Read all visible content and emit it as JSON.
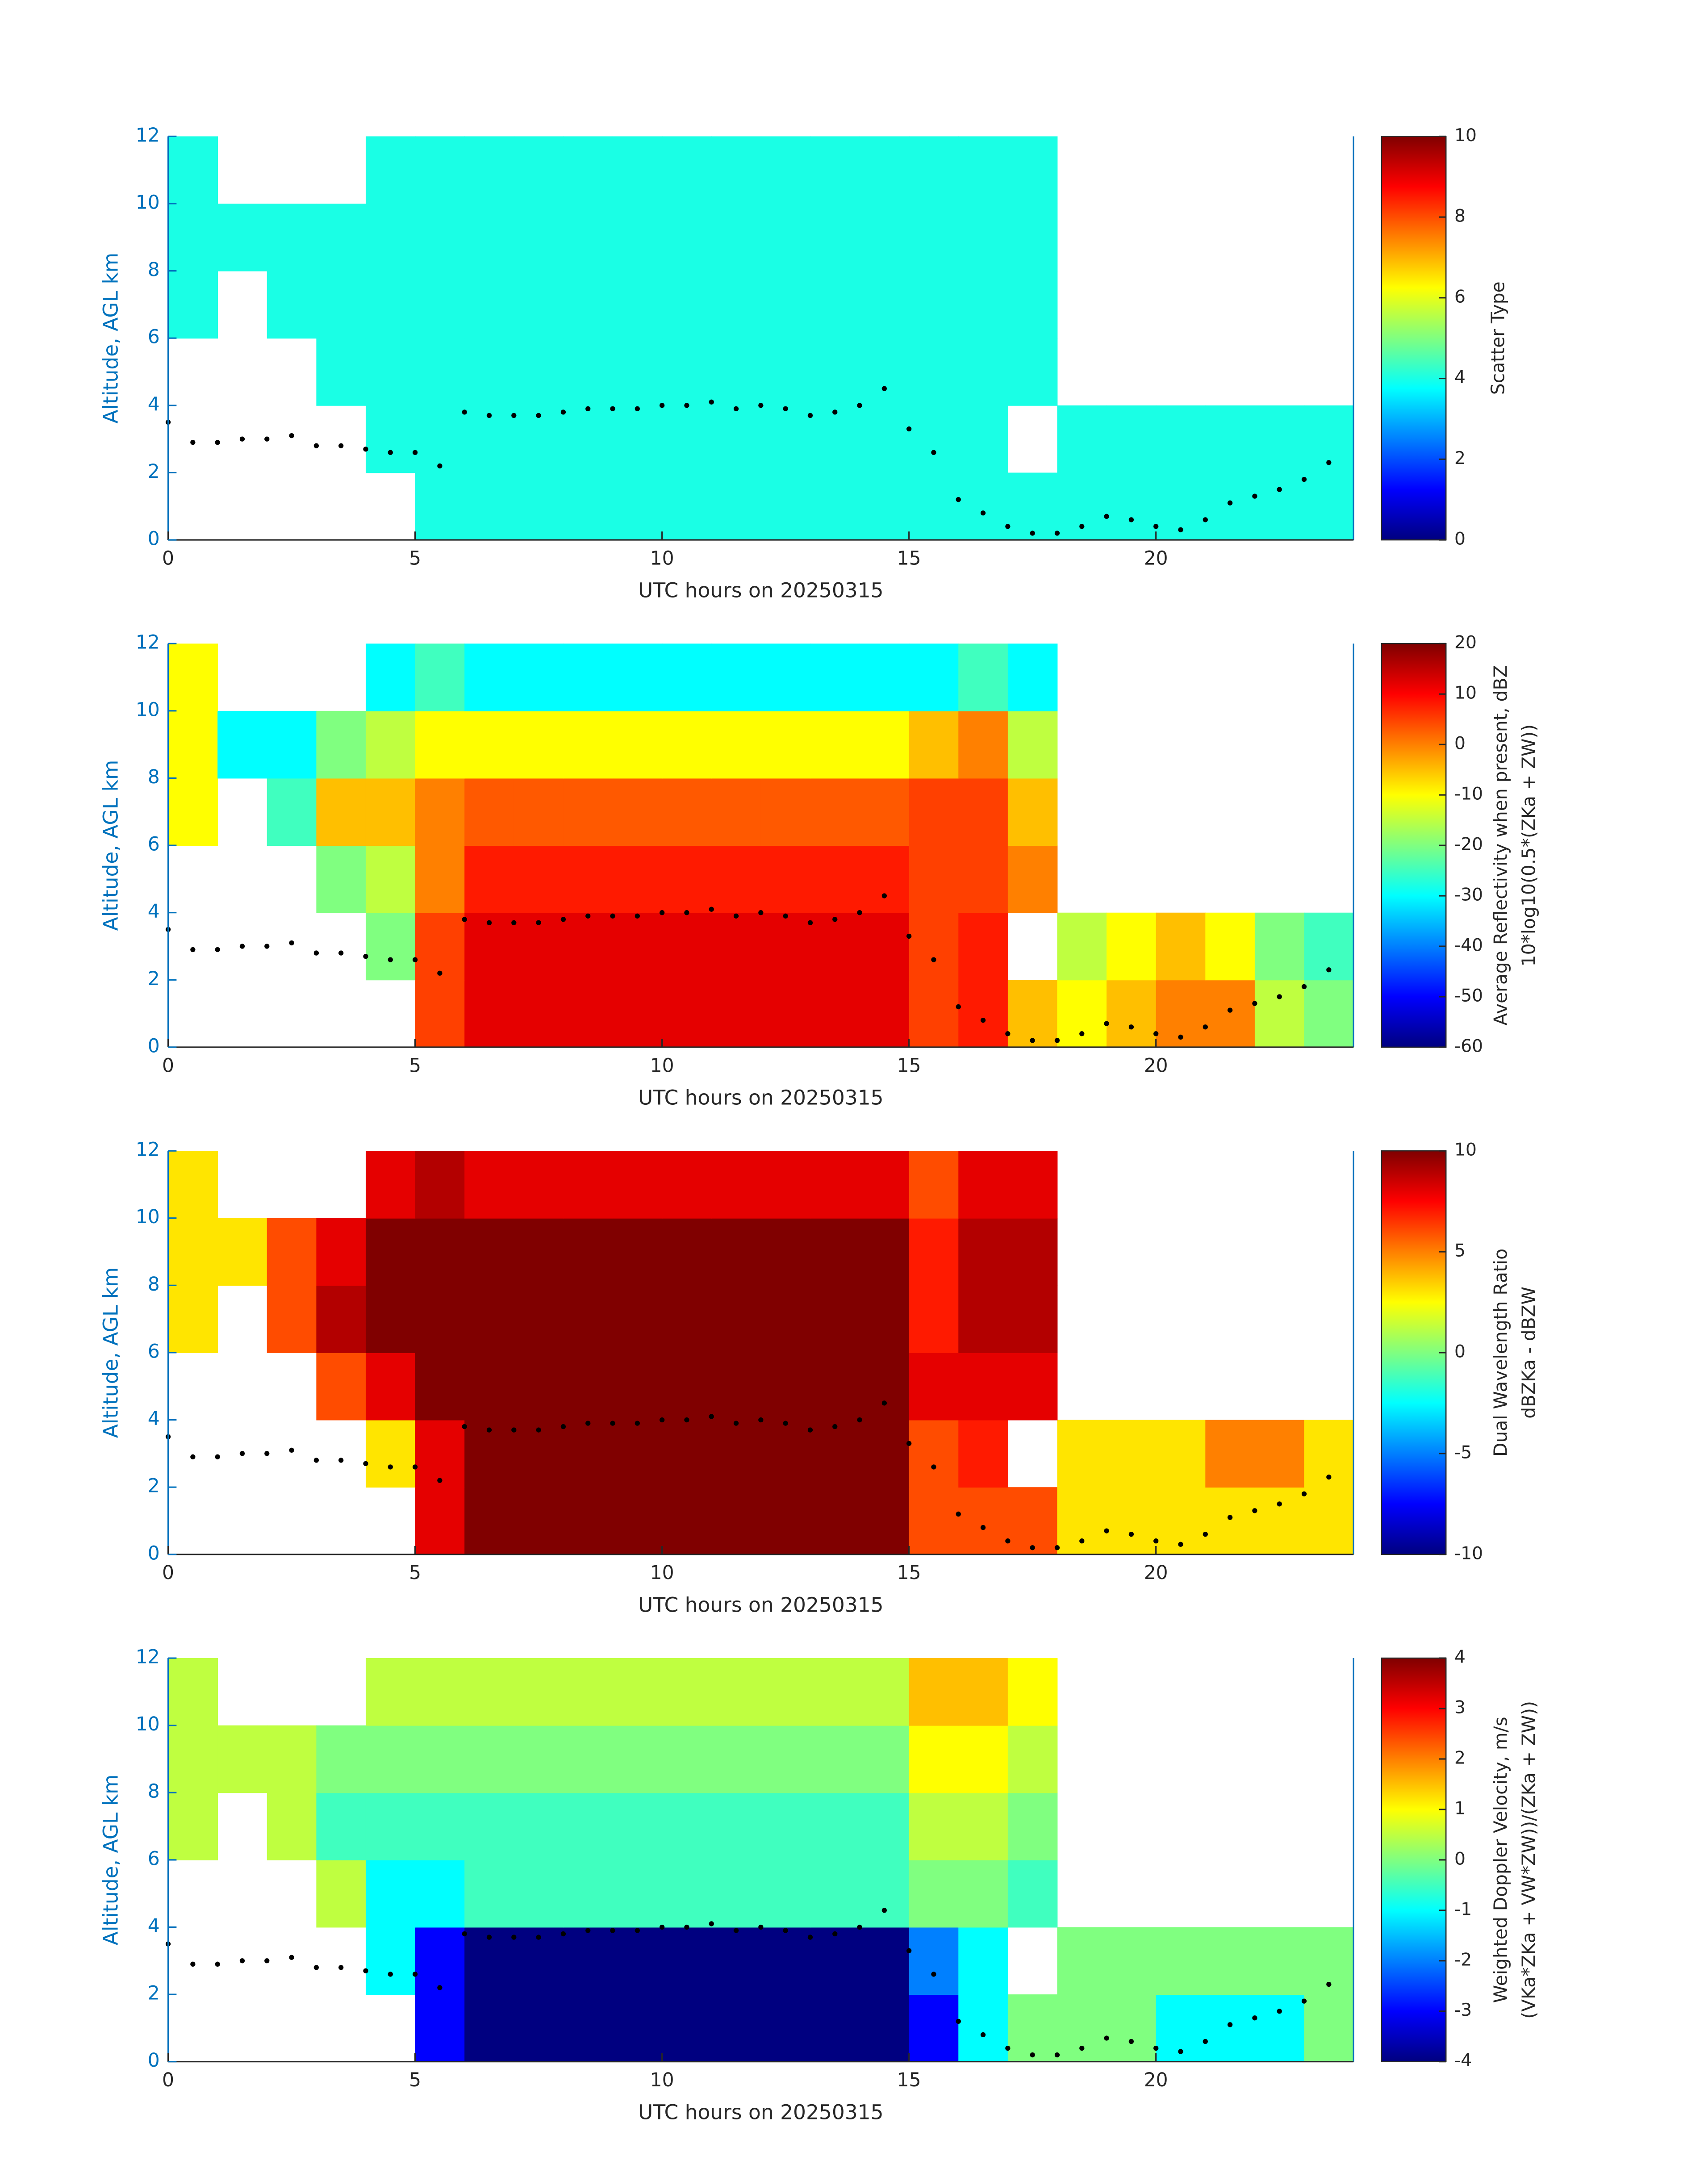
{
  "chart_data": [
    {
      "type": "heatmap",
      "colormap": "jet",
      "xlabel": "UTC hours on 20250315",
      "ylabel": "Altitude, AGL km",
      "colorbar_label": [
        "Scatter Type"
      ],
      "xlim": [
        0,
        24
      ],
      "ylim": [
        0,
        12
      ],
      "xticks": [
        0,
        5,
        10,
        15,
        20
      ],
      "yticks": [
        0,
        2,
        4,
        6,
        8,
        10,
        12
      ],
      "clim": [
        0,
        10
      ],
      "cticks": [
        0,
        2,
        4,
        6,
        8,
        10
      ],
      "x": [
        0.5,
        1.5,
        2.5,
        3.5,
        4.5,
        5.5,
        6.5,
        7.5,
        8.5,
        9.5,
        10.5,
        11.5,
        12.5,
        13.5,
        14.5,
        15.5,
        16.5,
        17.5,
        18.5,
        19.5,
        20.5,
        21.5,
        22.5,
        23.5
      ],
      "y": [
        1,
        3,
        5,
        7,
        9,
        11
      ],
      "z": [
        [
          null,
          null,
          null,
          null,
          null,
          4,
          4,
          4,
          4,
          4,
          4,
          4,
          4,
          4,
          4,
          4,
          4,
          4,
          4,
          4,
          4,
          4,
          4,
          4
        ],
        [
          null,
          null,
          null,
          null,
          4,
          4,
          4,
          4,
          4,
          4,
          4,
          4,
          4,
          4,
          4,
          4,
          4,
          null,
          4,
          4,
          4,
          4,
          4,
          4
        ],
        [
          null,
          null,
          null,
          4,
          4,
          4,
          4,
          4,
          4,
          4,
          4,
          4,
          4,
          4,
          4,
          4,
          4,
          4,
          null,
          null,
          null,
          null,
          null,
          null
        ],
        [
          4,
          null,
          4,
          4,
          4,
          4,
          4,
          4,
          4,
          4,
          4,
          4,
          4,
          4,
          4,
          4,
          4,
          4,
          null,
          null,
          null,
          null,
          null,
          null
        ],
        [
          4,
          4,
          4,
          4,
          4,
          4,
          4,
          4,
          4,
          4,
          4,
          4,
          4,
          4,
          4,
          4,
          4,
          4,
          null,
          null,
          null,
          null,
          null,
          null
        ],
        [
          4,
          null,
          null,
          null,
          4,
          4,
          4,
          4,
          4,
          4,
          4,
          4,
          4,
          4,
          4,
          4,
          4,
          4,
          null,
          null,
          null,
          null,
          null,
          null
        ]
      ]
    },
    {
      "type": "heatmap",
      "colormap": "jet",
      "xlabel": "UTC hours on 20250315",
      "ylabel": "Altitude, AGL km",
      "colorbar_label": [
        "Average Reflectivity when present, dBZ",
        "10*log10(0.5*(ZKa + ZW))"
      ],
      "xlim": [
        0,
        24
      ],
      "ylim": [
        0,
        12
      ],
      "xticks": [
        0,
        5,
        10,
        15,
        20
      ],
      "yticks": [
        0,
        2,
        4,
        6,
        8,
        10,
        12
      ],
      "clim": [
        -60,
        20
      ],
      "cticks": [
        -60,
        -50,
        -40,
        -30,
        -20,
        -10,
        0,
        10,
        20
      ],
      "x": [
        0.5,
        1.5,
        2.5,
        3.5,
        4.5,
        5.5,
        6.5,
        7.5,
        8.5,
        9.5,
        10.5,
        11.5,
        12.5,
        13.5,
        14.5,
        15.5,
        16.5,
        17.5,
        18.5,
        19.5,
        20.5,
        21.5,
        22.5,
        23.5
      ],
      "y": [
        1,
        3,
        5,
        7,
        9,
        11
      ],
      "z": [
        [
          null,
          null,
          null,
          null,
          null,
          5,
          12,
          12,
          12,
          12,
          12,
          12,
          12,
          12,
          12,
          5,
          8,
          -5,
          -10,
          -5,
          0,
          0,
          -15,
          -20
        ],
        [
          null,
          null,
          null,
          null,
          -20,
          5,
          12,
          12,
          12,
          12,
          12,
          12,
          12,
          12,
          12,
          5,
          8,
          null,
          -15,
          -10,
          -5,
          -10,
          -20,
          -25
        ],
        [
          null,
          null,
          null,
          -20,
          -15,
          0,
          8,
          8,
          8,
          8,
          8,
          8,
          8,
          8,
          8,
          5,
          5,
          0,
          null,
          null,
          null,
          null,
          null,
          null
        ],
        [
          -10,
          null,
          -25,
          -5,
          -5,
          0,
          3,
          3,
          3,
          3,
          3,
          3,
          3,
          3,
          3,
          5,
          5,
          -5,
          null,
          null,
          null,
          null,
          null,
          null
        ],
        [
          -10,
          -30,
          -30,
          -20,
          -15,
          -10,
          -10,
          -10,
          -10,
          -10,
          -10,
          -10,
          -10,
          -10,
          -10,
          -5,
          0,
          -15,
          null,
          null,
          null,
          null,
          null,
          null
        ],
        [
          -10,
          null,
          null,
          null,
          -30,
          -25,
          -30,
          -30,
          -30,
          -30,
          -30,
          -30,
          -30,
          -30,
          -30,
          -30,
          -25,
          -30,
          null,
          null,
          null,
          null,
          null,
          null
        ]
      ]
    },
    {
      "type": "heatmap",
      "colormap": "jet",
      "xlabel": "UTC hours on 20250315",
      "ylabel": "Altitude, AGL km",
      "colorbar_label": [
        "Dual Wavelength Ratio",
        "dBZKa - dBZW"
      ],
      "xlim": [
        0,
        24
      ],
      "ylim": [
        0,
        12
      ],
      "xticks": [
        0,
        5,
        10,
        15,
        20
      ],
      "yticks": [
        0,
        2,
        4,
        6,
        8,
        10,
        12
      ],
      "clim": [
        -10,
        10
      ],
      "cticks": [
        -10,
        -5,
        0,
        5,
        10
      ],
      "x": [
        0.5,
        1.5,
        2.5,
        3.5,
        4.5,
        5.5,
        6.5,
        7.5,
        8.5,
        9.5,
        10.5,
        11.5,
        12.5,
        13.5,
        14.5,
        15.5,
        16.5,
        17.5,
        18.5,
        19.5,
        20.5,
        21.5,
        22.5,
        23.5
      ],
      "y": [
        1,
        3,
        5,
        7,
        9,
        11
      ],
      "z": [
        [
          null,
          null,
          null,
          null,
          null,
          8,
          10,
          10,
          10,
          10,
          10,
          10,
          10,
          10,
          10,
          6,
          6,
          6,
          3,
          3,
          3,
          3,
          3,
          3
        ],
        [
          null,
          null,
          null,
          null,
          3,
          8,
          10,
          10,
          10,
          10,
          10,
          10,
          10,
          10,
          10,
          6,
          7,
          null,
          3,
          3,
          3,
          5,
          5,
          3
        ],
        [
          null,
          null,
          null,
          6,
          8,
          10,
          10,
          10,
          10,
          10,
          10,
          10,
          10,
          10,
          10,
          8,
          8,
          8,
          null,
          null,
          null,
          null,
          null,
          null
        ],
        [
          3,
          null,
          6,
          9,
          10,
          10,
          10,
          10,
          10,
          10,
          10,
          10,
          10,
          10,
          10,
          7,
          9,
          9,
          null,
          null,
          null,
          null,
          null,
          null
        ],
        [
          3,
          3,
          6,
          8,
          10,
          10,
          10,
          10,
          10,
          10,
          10,
          10,
          10,
          10,
          10,
          7,
          9,
          9,
          null,
          null,
          null,
          null,
          null,
          null
        ],
        [
          3,
          null,
          null,
          null,
          8,
          9,
          8,
          8,
          8,
          8,
          8,
          8,
          8,
          8,
          8,
          6,
          8,
          8,
          null,
          null,
          null,
          null,
          null,
          null
        ]
      ]
    },
    {
      "type": "heatmap",
      "colormap": "jet",
      "xlabel": "UTC hours on 20250315",
      "ylabel": "Altitude, AGL km",
      "colorbar_label": [
        "Weighted Doppler Velocity, m/s",
        "(VKa*ZKa + VW*ZW))/(ZKa + ZW))"
      ],
      "xlim": [
        0,
        24
      ],
      "ylim": [
        0,
        12
      ],
      "xticks": [
        0,
        5,
        10,
        15,
        20
      ],
      "yticks": [
        0,
        2,
        4,
        6,
        8,
        10,
        12
      ],
      "clim": [
        -4,
        4
      ],
      "cticks": [
        -4,
        -3,
        -2,
        -1,
        0,
        1,
        2,
        3,
        4
      ],
      "x": [
        0.5,
        1.5,
        2.5,
        3.5,
        4.5,
        5.5,
        6.5,
        7.5,
        8.5,
        9.5,
        10.5,
        11.5,
        12.5,
        13.5,
        14.5,
        15.5,
        16.5,
        17.5,
        18.5,
        19.5,
        20.5,
        21.5,
        22.5,
        23.5
      ],
      "y": [
        1,
        3,
        5,
        7,
        9,
        11
      ],
      "z": [
        [
          null,
          null,
          null,
          null,
          null,
          -3,
          -4,
          -4,
          -4,
          -4,
          -4,
          -4,
          -4,
          -4,
          -4,
          -3,
          -1,
          0,
          0,
          0,
          -1,
          -1,
          -1,
          0
        ],
        [
          null,
          null,
          null,
          null,
          -1,
          -3,
          -4,
          -4,
          -4,
          -4,
          -4,
          -4,
          -4,
          -4,
          -4,
          -2,
          -1,
          null,
          0,
          0,
          0,
          0,
          0,
          0
        ],
        [
          null,
          null,
          null,
          0.5,
          -1,
          -1,
          -0.5,
          -0.5,
          -0.5,
          -0.5,
          -0.5,
          -0.5,
          -0.5,
          -0.5,
          -0.5,
          0,
          0,
          -0.5,
          null,
          null,
          null,
          null,
          null,
          null
        ],
        [
          0.5,
          null,
          0.5,
          -0.5,
          -0.5,
          -0.5,
          -0.5,
          -0.5,
          -0.5,
          -0.5,
          -0.5,
          -0.5,
          -0.5,
          -0.5,
          -0.5,
          0.5,
          0.5,
          0,
          null,
          null,
          null,
          null,
          null,
          null
        ],
        [
          0.5,
          0.5,
          0.5,
          0,
          0,
          0,
          0,
          0,
          0,
          0,
          0,
          0,
          0,
          0,
          0,
          1,
          1,
          0.5,
          null,
          null,
          null,
          null,
          null,
          null
        ],
        [
          0.5,
          null,
          null,
          null,
          0.5,
          0.5,
          0.5,
          0.5,
          0.5,
          0.5,
          0.5,
          0.5,
          0.5,
          0.5,
          0.5,
          1.5,
          1.5,
          1,
          null,
          null,
          null,
          null,
          null,
          null
        ]
      ]
    }
  ],
  "overlay": {
    "color": "#000000",
    "x": [
      0,
      0.5,
      1,
      1.5,
      2,
      2.5,
      3,
      3.5,
      4,
      4.5,
      5,
      5.5,
      6,
      6.5,
      7,
      7.5,
      8,
      8.5,
      9,
      9.5,
      10,
      10.5,
      11,
      11.5,
      12,
      12.5,
      13,
      13.5,
      14,
      14.5,
      15,
      15.5,
      16,
      16.5,
      17,
      17.5,
      18,
      18.5,
      19,
      19.5,
      20,
      20.5,
      21,
      21.5,
      22,
      22.5,
      23,
      23.5
    ],
    "y": [
      3.5,
      2.9,
      2.9,
      3.0,
      3.0,
      3.1,
      2.8,
      2.8,
      2.7,
      2.6,
      2.6,
      2.2,
      3.8,
      3.7,
      3.7,
      3.7,
      3.8,
      3.9,
      3.9,
      3.9,
      4.0,
      4.0,
      4.1,
      3.9,
      4.0,
      3.9,
      3.7,
      3.8,
      4.0,
      4.5,
      3.3,
      2.6,
      1.2,
      0.8,
      0.4,
      0.2,
      0.2,
      0.4,
      0.7,
      0.6,
      0.4,
      0.3,
      0.6,
      1.1,
      1.3,
      1.5,
      1.8,
      2.3
    ]
  }
}
